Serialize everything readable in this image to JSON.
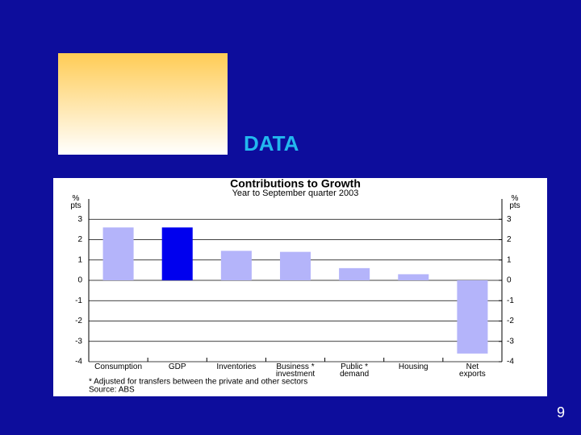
{
  "slide": {
    "heading": "DATA",
    "page_number": "9"
  },
  "chart_data": {
    "type": "bar",
    "title": "Contributions to Growth",
    "subtitle": "Year to September quarter 2003",
    "y_label": "%\npts",
    "y2_label": "%\npts",
    "categories": [
      "Consumption",
      "GDP",
      "Inventories",
      "Business *\ninvestment",
      "Public *\ndemand",
      "Housing",
      "Net\nexports"
    ],
    "values": [
      2.6,
      2.6,
      1.45,
      1.4,
      0.6,
      0.3,
      -3.6
    ],
    "colors": [
      "#b4b4fa",
      "#0000ee",
      "#b4b4fa",
      "#b4b4fa",
      "#b4b4fa",
      "#b4b4fa",
      "#b4b4fa"
    ],
    "ylim": [
      -4,
      4
    ],
    "yticks": [
      3,
      2,
      1,
      0,
      -1,
      -2,
      -3,
      -4
    ],
    "y2lim": [
      -4,
      4
    ],
    "y2ticks": [
      3,
      2,
      1,
      0,
      -1,
      -2,
      -3,
      -4
    ],
    "grid": true,
    "footnote": "* Adjusted for transfers between the private and other sectors",
    "source": "Source: ABS"
  }
}
